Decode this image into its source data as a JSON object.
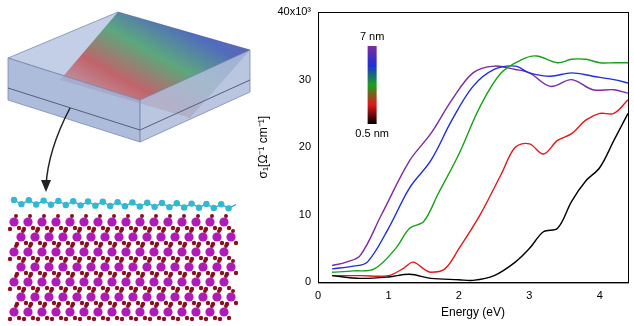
{
  "chart_data": {
    "type": "line",
    "x_label": "Energy (eV)",
    "y_label": "σ₁[Ω⁻¹ cm⁻¹]",
    "xlim": [
      0,
      4.4
    ],
    "xticks": [
      0,
      1,
      2,
      3,
      4
    ],
    "ylim": [
      0,
      40
    ],
    "yticks": [
      0,
      10,
      20,
      30,
      {
        "value": 40,
        "label": "40x10³"
      }
    ],
    "grid": false,
    "colorbar": {
      "top_label": "7 nm",
      "bottom_label": "0.5 nm",
      "colors": [
        "#7b2c9e",
        "#1f2fd8",
        "#1aa01a",
        "#e0191b",
        "#000000"
      ]
    },
    "series": [
      {
        "color": "#000000",
        "x": [
          0.2,
          0.6,
          1.0,
          1.3,
          1.6,
          2.0,
          2.2,
          2.5,
          2.8,
          3.0,
          3.2,
          3.4,
          3.6,
          3.8,
          4.0,
          4.2,
          4.4
        ],
        "values": [
          1,
          0.6,
          0.8,
          1.2,
          0.6,
          0.4,
          0.3,
          1,
          3,
          5,
          7.5,
          8,
          12,
          15,
          17,
          21,
          25
        ]
      },
      {
        "color": "#e0191b",
        "x": [
          0.2,
          0.6,
          1.0,
          1.2,
          1.35,
          1.5,
          1.6,
          1.8,
          2.0,
          2.3,
          2.6,
          2.8,
          3.0,
          3.2,
          3.4,
          3.6,
          3.8,
          4.0,
          4.2,
          4.4
        ],
        "values": [
          1,
          1,
          1,
          2,
          3,
          2,
          1.5,
          2,
          5,
          10,
          16,
          20,
          20.5,
          19,
          21,
          22,
          24,
          25,
          25,
          27
        ]
      },
      {
        "color": "#1aa01a",
        "x": [
          0.2,
          0.5,
          0.8,
          1.1,
          1.3,
          1.5,
          1.7,
          2.0,
          2.3,
          2.6,
          2.9,
          3.1,
          3.4,
          3.6,
          3.8,
          4.0,
          4.2,
          4.4
        ],
        "values": [
          1.5,
          1.7,
          2,
          5,
          8,
          9,
          13,
          19,
          26,
          31,
          33,
          33.5,
          32.5,
          33,
          33,
          32.5,
          32.5,
          32.5
        ]
      },
      {
        "color": "#1f2fd8",
        "x": [
          0.2,
          0.5,
          0.7,
          1.0,
          1.3,
          1.6,
          1.9,
          2.2,
          2.5,
          2.8,
          3.0,
          3.3,
          3.6,
          3.9,
          4.2,
          4.4
        ],
        "values": [
          2,
          2.4,
          3,
          8,
          14,
          18,
          24,
          29,
          31.5,
          32,
          31,
          30.5,
          31,
          30.5,
          30,
          29.5
        ]
      },
      {
        "color": "#7b2c9e",
        "x": [
          0.2,
          0.4,
          0.6,
          0.9,
          1.3,
          1.6,
          1.9,
          2.2,
          2.5,
          2.8,
          3.0,
          3.3,
          3.6,
          3.9,
          4.2,
          4.4
        ],
        "values": [
          2.5,
          3,
          4,
          10,
          18,
          22,
          27,
          31,
          32,
          31.5,
          31,
          29,
          30,
          28.5,
          28.5,
          28
        ]
      }
    ]
  }
}
